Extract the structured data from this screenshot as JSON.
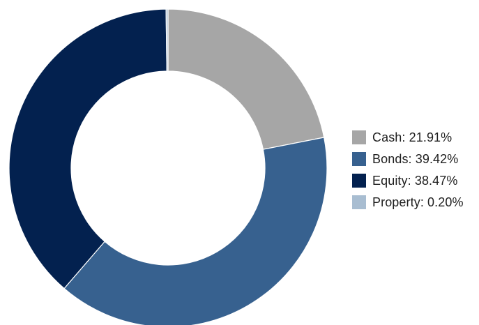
{
  "chart_data": {
    "type": "pie",
    "variant": "donut",
    "title": "",
    "slices": [
      {
        "name": "Cash",
        "value": 21.91,
        "label": "Cash: 21.91%",
        "color": "#a6a6a6"
      },
      {
        "name": "Bonds",
        "value": 39.42,
        "label": "Bonds: 39.42%",
        "color": "#37618f"
      },
      {
        "name": "Equity",
        "value": 38.47,
        "label": "Equity: 38.47%",
        "color": "#03214f"
      },
      {
        "name": "Property",
        "value": 0.2,
        "label": "Property: 0.20%",
        "color": "#a8bdd1"
      }
    ],
    "start": "12 o'clock",
    "direction": "clockwise",
    "legend_position": "right"
  }
}
